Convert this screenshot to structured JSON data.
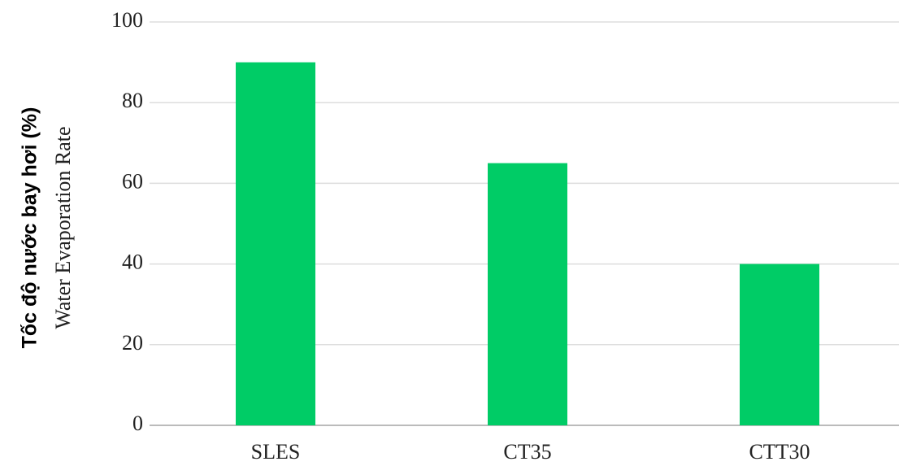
{
  "chart_data": {
    "type": "bar",
    "ylabel": [
      "Tốc độ nước bay hơi (%)",
      "Water Evaporation Rate"
    ],
    "categories": [
      "SLES",
      "CT35",
      "CTT30"
    ],
    "values": [
      90,
      65,
      40
    ],
    "color": "#00cc66",
    "ylim": [
      0,
      100
    ],
    "yticks": [
      0,
      20,
      40,
      60,
      80,
      100
    ],
    "grid": true
  }
}
